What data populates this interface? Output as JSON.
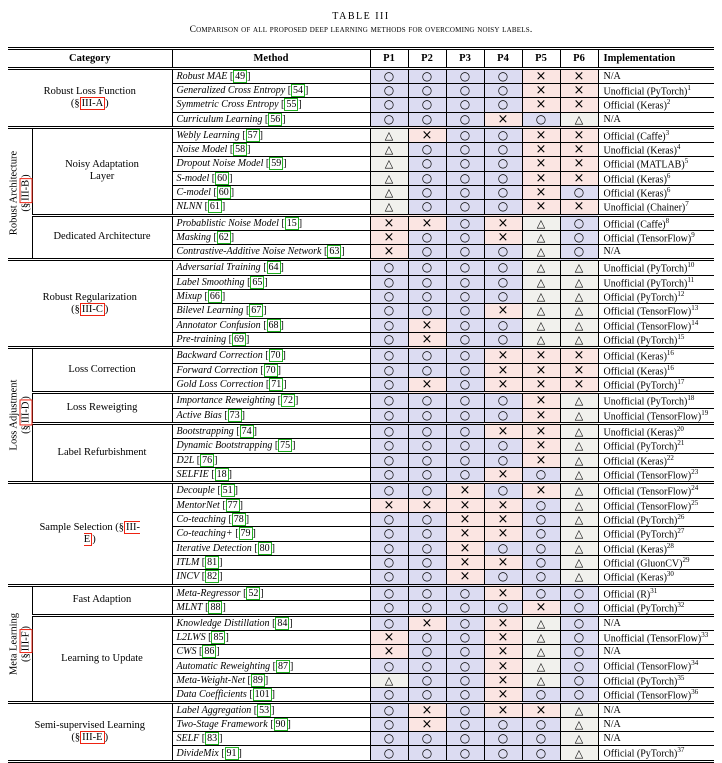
{
  "caption": {
    "label": "TABLE III",
    "subtitle": "Comparison of all proposed deep learning methods for overcoming noisy labels."
  },
  "columns": {
    "category": "Category",
    "method": "Method",
    "p": [
      "P1",
      "P2",
      "P3",
      "P4",
      "P5",
      "P6"
    ],
    "implementation": "Implementation"
  },
  "marks": {
    "O": {
      "name": "circle",
      "glyph": "○",
      "bg": "#dcdcf2"
    },
    "X": {
      "name": "cross",
      "glyph": "×",
      "bg": "#fbe5e2"
    },
    "T": {
      "name": "triangle",
      "glyph": "△",
      "bg": "#f1f1ed"
    }
  },
  "accent_colors": {
    "section_ref_box": "#ee2211",
    "citation_box": "#22b022"
  },
  "sections": [
    {
      "category": {
        "name": "Robust Loss Function",
        "ref": "III-A"
      },
      "rows": [
        {
          "method": "Robust MAE",
          "cite": "49",
          "marks": [
            "O",
            "O",
            "O",
            "O",
            "X",
            "X"
          ],
          "impl": "N/A",
          "sup": ""
        },
        {
          "method": "Generalized Cross Entropy",
          "cite": "54",
          "marks": [
            "O",
            "O",
            "O",
            "O",
            "X",
            "X"
          ],
          "impl": "Unofficial (PyTorch)",
          "sup": "1"
        },
        {
          "method": "Symmetric Cross Entropy",
          "cite": "55",
          "marks": [
            "O",
            "O",
            "O",
            "O",
            "X",
            "X"
          ],
          "impl": "Official (Keras)",
          "sup": "2"
        },
        {
          "method": "Curriculum Learning",
          "cite": "56",
          "marks": [
            "O",
            "O",
            "O",
            "X",
            "O",
            "T"
          ],
          "impl": "N/A",
          "sup": ""
        }
      ]
    },
    {
      "side": {
        "name": "Robust Architecture",
        "ref": "III-B"
      },
      "subsections": [
        {
          "name": "Noisy Adaptation Layer",
          "rows": [
            {
              "method": "Webly Learning",
              "cite": "57",
              "marks": [
                "T",
                "X",
                "O",
                "O",
                "X",
                "X"
              ],
              "impl": "Official (Caffe)",
              "sup": "3"
            },
            {
              "method": "Noise Model",
              "cite": "58",
              "marks": [
                "T",
                "O",
                "O",
                "O",
                "X",
                "X"
              ],
              "impl": "Unofficial (Keras)",
              "sup": "4"
            },
            {
              "method": "Dropout Noise Model",
              "cite": "59",
              "marks": [
                "T",
                "O",
                "O",
                "O",
                "X",
                "X"
              ],
              "impl": "Official (MATLAB)",
              "sup": "5"
            },
            {
              "method": "S-model",
              "cite": "60",
              "marks": [
                "T",
                "O",
                "O",
                "O",
                "X",
                "X"
              ],
              "impl": "Official (Keras)",
              "sup": "6"
            },
            {
              "method": "C-model",
              "cite": "60",
              "marks": [
                "T",
                "O",
                "O",
                "O",
                "X",
                "O"
              ],
              "impl": "Official (Keras)",
              "sup": "6"
            },
            {
              "method": "NLNN",
              "cite": "61",
              "marks": [
                "T",
                "O",
                "O",
                "O",
                "X",
                "X"
              ],
              "impl": "Unofficial (Chainer)",
              "sup": "7"
            }
          ]
        },
        {
          "name": "Dedicated Architecture",
          "rows": [
            {
              "method": "Probablistic Noise Model",
              "cite": "15",
              "marks": [
                "X",
                "X",
                "O",
                "X",
                "T",
                "O"
              ],
              "impl": "Official (Caffe)",
              "sup": "8"
            },
            {
              "method": "Masking",
              "cite": "62",
              "marks": [
                "X",
                "O",
                "O",
                "X",
                "T",
                "O"
              ],
              "impl": "Official (TensorFlow)",
              "sup": "9"
            },
            {
              "method": "Contrastive-Additive Noise Network",
              "cite": "63",
              "marks": [
                "X",
                "O",
                "O",
                "O",
                "T",
                "O"
              ],
              "impl": "N/A",
              "sup": ""
            }
          ]
        }
      ]
    },
    {
      "category": {
        "name": "Robust Regularization",
        "ref": "III-C"
      },
      "rows": [
        {
          "method": "Adversarial Training",
          "cite": "64",
          "marks": [
            "O",
            "O",
            "O",
            "O",
            "T",
            "T"
          ],
          "impl": "Unofficial (PyTorch)",
          "sup": "10"
        },
        {
          "method": "Label Smoothing",
          "cite": "65",
          "marks": [
            "O",
            "O",
            "O",
            "O",
            "T",
            "T"
          ],
          "impl": "Unofficial (PyTorch)",
          "sup": "11"
        },
        {
          "method": "Mixup",
          "cite": "66",
          "marks": [
            "O",
            "O",
            "O",
            "O",
            "T",
            "T"
          ],
          "impl": "Official (PyTorch)",
          "sup": "12"
        },
        {
          "method": "Bilevel Learning",
          "cite": "67",
          "marks": [
            "O",
            "O",
            "O",
            "X",
            "T",
            "T"
          ],
          "impl": "Official (TensorFlow)",
          "sup": "13"
        },
        {
          "method": "Annotator Confusion",
          "cite": "68",
          "marks": [
            "O",
            "X",
            "O",
            "O",
            "T",
            "T"
          ],
          "impl": "Official (TensorFlow)",
          "sup": "14"
        },
        {
          "method": "Pre-training",
          "cite": "69",
          "marks": [
            "O",
            "X",
            "O",
            "O",
            "T",
            "T"
          ],
          "impl": "Official (PyTorch)",
          "sup": "15"
        }
      ]
    },
    {
      "side": {
        "name": "Loss Adjustment",
        "ref": "III-D"
      },
      "subsections": [
        {
          "name": "Loss Correction",
          "rows": [
            {
              "method": "Backward Correction",
              "cite": "70",
              "marks": [
                "O",
                "O",
                "O",
                "X",
                "X",
                "X"
              ],
              "impl": "Official (Keras)",
              "sup": "16"
            },
            {
              "method": "Forward Correction",
              "cite": "70",
              "marks": [
                "O",
                "O",
                "O",
                "X",
                "X",
                "X"
              ],
              "impl": "Official (Keras)",
              "sup": "16"
            },
            {
              "method": "Gold Loss Correction",
              "cite": "71",
              "marks": [
                "O",
                "X",
                "O",
                "X",
                "X",
                "X"
              ],
              "impl": "Official (PyTorch)",
              "sup": "17"
            }
          ]
        },
        {
          "name": "Loss Reweigting",
          "rows": [
            {
              "method": "Importance Reweighting",
              "cite": "72",
              "marks": [
                "O",
                "O",
                "O",
                "O",
                "X",
                "T"
              ],
              "impl": "Unofficial (PyTorch)",
              "sup": "18"
            },
            {
              "method": "Active Bias",
              "cite": "73",
              "marks": [
                "O",
                "O",
                "O",
                "O",
                "X",
                "T"
              ],
              "impl": "Unofficial (TensorFlow)",
              "sup": "19"
            }
          ]
        },
        {
          "name": "Label Refurbishment",
          "rows": [
            {
              "method": "Bootstrapping",
              "cite": "74",
              "marks": [
                "O",
                "O",
                "O",
                "X",
                "X",
                "T"
              ],
              "impl": "Unofficial (Keras)",
              "sup": "20"
            },
            {
              "method": "Dynamic Bootstrapping",
              "cite": "75",
              "marks": [
                "O",
                "O",
                "O",
                "O",
                "X",
                "T"
              ],
              "impl": "Official (PyTorch)",
              "sup": "21"
            },
            {
              "method": "D2L",
              "cite": "76",
              "marks": [
                "O",
                "O",
                "O",
                "O",
                "X",
                "T"
              ],
              "impl": "Official (Keras)",
              "sup": "22"
            },
            {
              "method": "SELFIE",
              "cite": "18",
              "marks": [
                "O",
                "O",
                "O",
                "X",
                "O",
                "T"
              ],
              "impl": "Official (TensorFlow)",
              "sup": "23"
            }
          ]
        }
      ]
    },
    {
      "category": {
        "name": "Sample Selection",
        "ref": "III-E"
      },
      "rows": [
        {
          "method": "Decouple",
          "cite": "51",
          "marks": [
            "O",
            "O",
            "X",
            "O",
            "X",
            "T"
          ],
          "impl": "Official (TensorFlow)",
          "sup": "24"
        },
        {
          "method": "MentorNet",
          "cite": "77",
          "marks": [
            "X",
            "X",
            "X",
            "X",
            "O",
            "T"
          ],
          "impl": "Official (TensorFlow)",
          "sup": "25"
        },
        {
          "method": "Co-teaching",
          "cite": "78",
          "marks": [
            "O",
            "O",
            "X",
            "X",
            "O",
            "T"
          ],
          "impl": "Official (PyTorch)",
          "sup": "26"
        },
        {
          "method": "Co-teaching+",
          "cite": "79",
          "marks": [
            "O",
            "O",
            "X",
            "X",
            "O",
            "T"
          ],
          "impl": "Official (PyTorch)",
          "sup": "27"
        },
        {
          "method": "Iterative Detection",
          "cite": "80",
          "marks": [
            "O",
            "O",
            "X",
            "O",
            "O",
            "T"
          ],
          "impl": "Official (Keras)",
          "sup": "28"
        },
        {
          "method": "ITLM",
          "cite": "81",
          "marks": [
            "O",
            "O",
            "X",
            "X",
            "O",
            "T"
          ],
          "impl": "Official (GluonCV)",
          "sup": "29"
        },
        {
          "method": "INCV",
          "cite": "82",
          "marks": [
            "O",
            "O",
            "X",
            "O",
            "O",
            "T"
          ],
          "impl": "Official (Keras)",
          "sup": "30"
        }
      ]
    },
    {
      "side": {
        "name": "Meta Learning",
        "ref": "III-F"
      },
      "subsections": [
        {
          "name": "Fast Adaption",
          "rows": [
            {
              "method": "Meta-Regressor",
              "cite": "52",
              "marks": [
                "O",
                "O",
                "O",
                "X",
                "O",
                "O"
              ],
              "impl": "Official (R)",
              "sup": "31"
            },
            {
              "method": "MLNT",
              "cite": "88",
              "marks": [
                "O",
                "O",
                "O",
                "O",
                "X",
                "O"
              ],
              "impl": "Official (PyTorch)",
              "sup": "32"
            }
          ]
        },
        {
          "name": "Learning to Update",
          "rows": [
            {
              "method": "Knowledge Distillation",
              "cite": "84",
              "marks": [
                "O",
                "X",
                "O",
                "X",
                "T",
                "O"
              ],
              "impl": "N/A",
              "sup": ""
            },
            {
              "method": "L2LWS",
              "cite": "85",
              "marks": [
                "X",
                "O",
                "O",
                "X",
                "T",
                "O"
              ],
              "impl": "Unofficial (TensorFlow)",
              "sup": "33"
            },
            {
              "method": "CWS",
              "cite": "86",
              "marks": [
                "X",
                "O",
                "O",
                "X",
                "T",
                "O"
              ],
              "impl": "N/A",
              "sup": ""
            },
            {
              "method": "Automatic Reweighting",
              "cite": "87",
              "marks": [
                "O",
                "O",
                "O",
                "X",
                "T",
                "O"
              ],
              "impl": "Official (TensorFlow)",
              "sup": "34"
            },
            {
              "method": "Meta-Weight-Net",
              "cite": "89",
              "marks": [
                "T",
                "O",
                "O",
                "X",
                "T",
                "O"
              ],
              "impl": "Official (PyTorch)",
              "sup": "35"
            },
            {
              "method": "Data Coefficients",
              "cite": "101",
              "marks": [
                "O",
                "O",
                "O",
                "X",
                "O",
                "O"
              ],
              "impl": "Official (TensorFlow)",
              "sup": "36"
            }
          ]
        }
      ]
    },
    {
      "category": {
        "name": "Semi-supervised Learning",
        "ref": "III-E"
      },
      "rows": [
        {
          "method": "Label Aggregation",
          "cite": "53",
          "marks": [
            "O",
            "X",
            "O",
            "X",
            "X",
            "T"
          ],
          "impl": "N/A",
          "sup": ""
        },
        {
          "method": "Two-Stage Framework",
          "cite": "90",
          "marks": [
            "O",
            "X",
            "O",
            "O",
            "O",
            "T"
          ],
          "impl": "N/A",
          "sup": ""
        },
        {
          "method": "SELF",
          "cite": "83",
          "marks": [
            "O",
            "O",
            "O",
            "O",
            "O",
            "T"
          ],
          "impl": "N/A",
          "sup": ""
        },
        {
          "method": "DivideMix",
          "cite": "91",
          "marks": [
            "O",
            "O",
            "O",
            "O",
            "O",
            "T"
          ],
          "impl": "Official (PyTorch)",
          "sup": "37"
        }
      ]
    }
  ]
}
